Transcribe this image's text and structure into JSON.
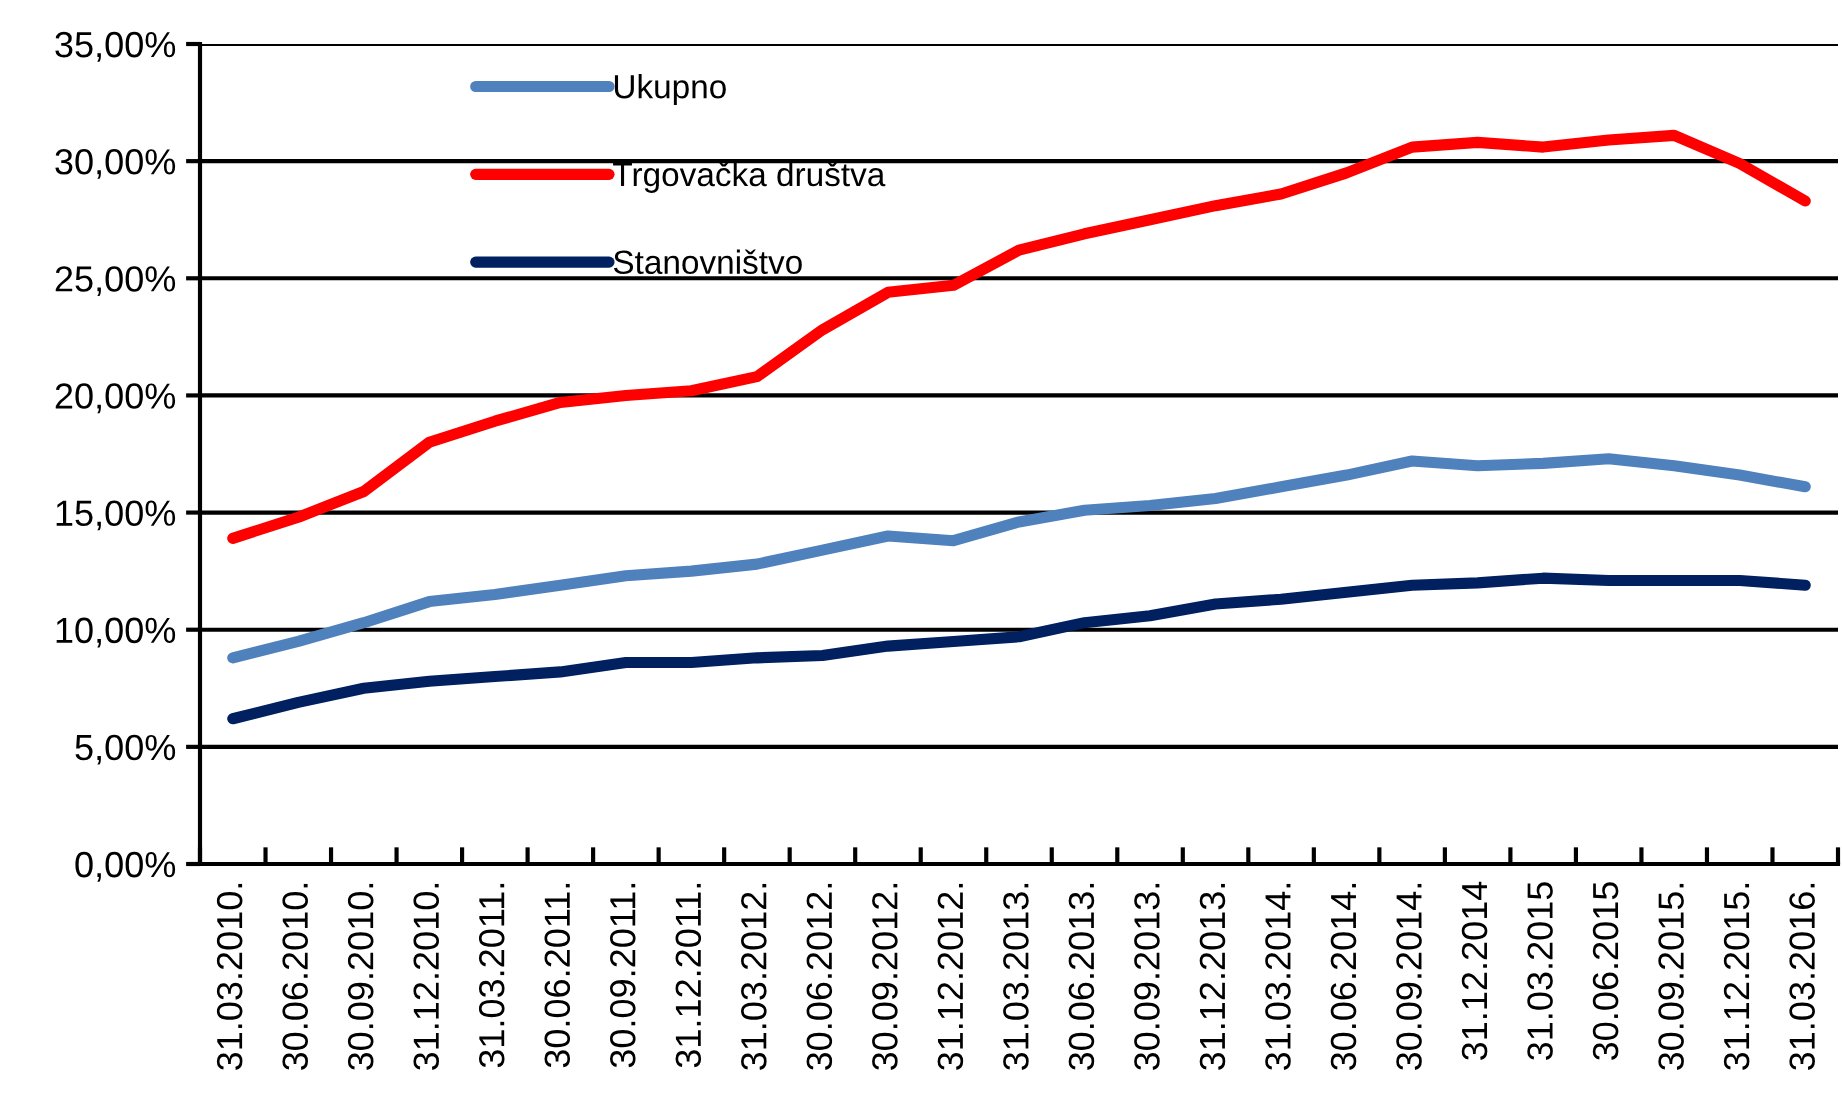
{
  "chart_data": {
    "type": "line",
    "categories": [
      "31.03.2010.",
      "30.06.2010.",
      "30.09.2010.",
      "31.12.2010.",
      "31.03.2011.",
      "30.06.2011.",
      "30.09.2011.",
      "31.12.2011.",
      "31.03.2012.",
      "30.06.2012.",
      "30.09.2012.",
      "31.12.2012.",
      "31.03.2013.",
      "30.06.2013.",
      "30.09.2013.",
      "31.12.2013.",
      "31.03.2014.",
      "30.06.2014.",
      "30.09.2014.",
      "31.12.2014",
      "31.03.2015",
      "30.06.2015",
      "30.09.2015.",
      "31.12.2015.",
      "31.03.2016."
    ],
    "series": [
      {
        "name": "Ukupno",
        "color": "#4f81bd",
        "values": [
          8.8,
          9.5,
          10.3,
          11.2,
          11.5,
          11.9,
          12.3,
          12.5,
          12.8,
          13.4,
          14.0,
          13.8,
          14.6,
          15.1,
          15.3,
          15.6,
          16.1,
          16.6,
          17.2,
          17.0,
          17.1,
          17.3,
          17.0,
          16.6,
          16.1
        ]
      },
      {
        "name": "Trgovačka društva",
        "color": "#ff0000",
        "values": [
          13.9,
          14.8,
          15.9,
          18.0,
          18.9,
          19.7,
          20.0,
          20.2,
          20.8,
          22.8,
          24.4,
          24.7,
          26.2,
          26.9,
          27.5,
          28.1,
          28.6,
          29.5,
          30.6,
          30.8,
          30.6,
          30.9,
          31.1,
          29.9,
          28.3
        ]
      },
      {
        "name": "Stanovništvo",
        "color": "#002060",
        "values": [
          6.2,
          6.9,
          7.5,
          7.8,
          8.0,
          8.2,
          8.6,
          8.6,
          8.8,
          8.9,
          9.3,
          9.5,
          9.7,
          10.3,
          10.6,
          11.1,
          11.3,
          11.6,
          11.9,
          12.0,
          12.2,
          12.1,
          12.1,
          12.1,
          11.9
        ]
      }
    ],
    "ylim": [
      0,
      35
    ],
    "yticks": [
      {
        "value": 0,
        "label": "0,00%"
      },
      {
        "value": 5,
        "label": "5,00%"
      },
      {
        "value": 10,
        "label": "10,00%"
      },
      {
        "value": 15,
        "label": "15,00%"
      },
      {
        "value": 20,
        "label": "20,00%"
      },
      {
        "value": 25,
        "label": "25,00%"
      },
      {
        "value": 30,
        "label": "30,00%"
      },
      {
        "value": 35,
        "label": "35,00%"
      }
    ],
    "grid": "y",
    "legend": "top left",
    "marker": "none",
    "line_style": "solid"
  }
}
